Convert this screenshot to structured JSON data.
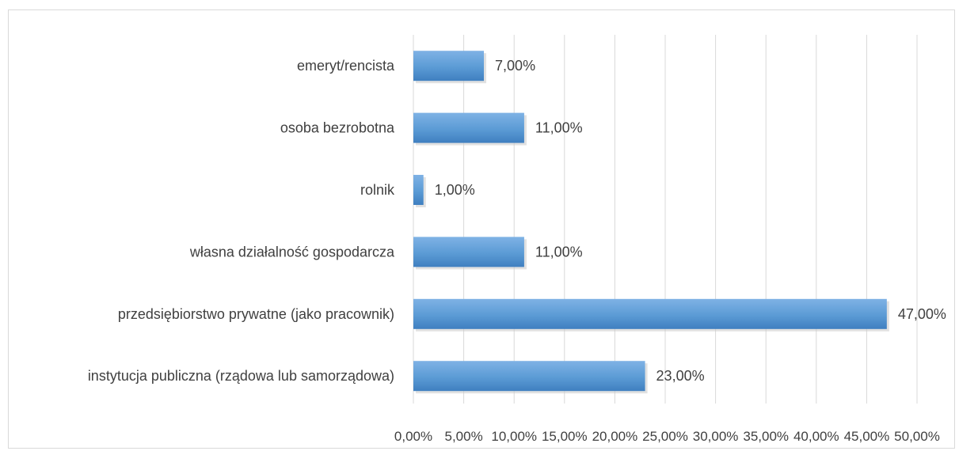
{
  "chart_data": {
    "type": "bar",
    "orientation": "horizontal",
    "categories": [
      "emeryt/rencista",
      "osoba bezrobotna",
      "rolnik",
      "własna działalność gospodarcza",
      "przedsiębiorstwo prywatne (jako pracownik)",
      "instytucja publiczna (rządowa lub samorządowa)"
    ],
    "values": [
      7,
      11,
      1,
      11,
      47,
      23
    ],
    "value_labels": [
      "7,00%",
      "11,00%",
      "1,00%",
      "11,00%",
      "47,00%",
      "23,00%"
    ],
    "xlim": [
      0,
      50
    ],
    "x_ticks": [
      "0,00%",
      "5,00%",
      "10,00%",
      "15,00%",
      "20,00%",
      "25,00%",
      "30,00%",
      "35,00%",
      "40,00%",
      "45,00%",
      "50,00%"
    ],
    "grid": true,
    "legend": "none",
    "bar_color": "#5b9bd5",
    "title": "",
    "xlabel": "",
    "ylabel": ""
  }
}
